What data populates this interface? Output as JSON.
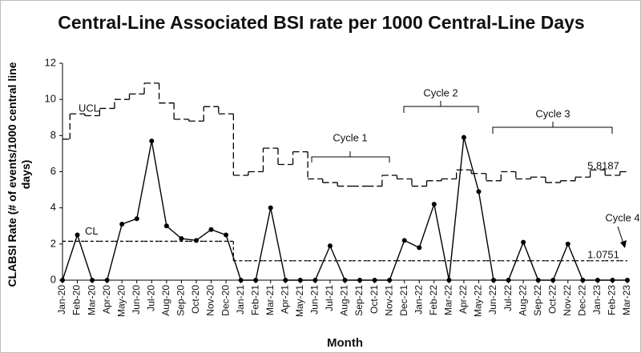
{
  "chart_data": {
    "type": "control",
    "title": "Central-Line Associated BSI rate per 1000 Central-Line Days",
    "y_label": "CLABSI Rate (# of events/1000 central line days)",
    "x_label": "Month",
    "categories": [
      "Jan-20",
      "Feb-20",
      "Mar-20",
      "Apr-20",
      "May-20",
      "Jun-20",
      "Jul-20",
      "Aug-20",
      "Sep-20",
      "Oct-20",
      "Nov-20",
      "Dec-20",
      "Jan-21",
      "Feb-21",
      "Mar-21",
      "Apr-21",
      "May-21",
      "Jun-21",
      "Jul-21",
      "Aug-21",
      "Sep-21",
      "Oct-21",
      "Nov-21",
      "Dec-21",
      "Jan-22",
      "Feb-22",
      "Mar-22",
      "Apr-22",
      "May-22",
      "Jun-22",
      "Jul-22",
      "Aug-22",
      "Sep-22",
      "Oct-22",
      "Nov-22",
      "Dec-22",
      "Jan-23",
      "Feb-23",
      "Mar-23"
    ],
    "series": [
      {
        "color": "#000000",
        "values": [
          0,
          2.5,
          0,
          0,
          3.1,
          3.4,
          7.7,
          3.0,
          2.3,
          2.2,
          2.8,
          2.5,
          0,
          0,
          4.0,
          0,
          0,
          0,
          1.9,
          0,
          0,
          0,
          0,
          2.2,
          1.8,
          4.2,
          0,
          7.9,
          4.9,
          0,
          0,
          2.1,
          0,
          0,
          2.0,
          0,
          0,
          0,
          0
        ]
      },
      {
        "name": "UCL",
        "color": "#000000",
        "values": [
          7.8,
          9.2,
          9.1,
          9.5,
          10.0,
          10.3,
          10.9,
          9.8,
          8.9,
          8.8,
          9.6,
          9.2,
          5.8,
          6.0,
          7.3,
          6.4,
          7.1,
          5.6,
          5.4,
          5.2,
          5.2,
          5.2,
          5.8,
          5.6,
          5.2,
          5.5,
          5.6,
          6.1,
          5.9,
          5.5,
          6.0,
          5.6,
          5.7,
          5.4,
          5.5,
          5.7,
          6.1,
          5.8,
          6.0
        ]
      },
      {
        "name": "CL",
        "color": "#000000",
        "values": [
          2.15,
          2.15,
          2.15,
          2.15,
          2.15,
          2.15,
          2.15,
          2.15,
          2.15,
          2.15,
          2.15,
          2.15,
          1.0751,
          1.0751,
          1.0751,
          1.0751,
          1.0751,
          1.0751,
          1.0751,
          1.0751,
          1.0751,
          1.0751,
          1.0751,
          1.0751,
          1.0751,
          1.0751,
          1.0751,
          1.0751,
          1.0751,
          1.0751,
          1.0751,
          1.0751,
          1.0751,
          1.0751,
          1.0751,
          1.0751,
          1.0751,
          1.0751,
          1.0751
        ]
      }
    ],
    "annotations": [
      "Cycle 1",
      "Cycle 2",
      "Cycle 3",
      "Cycle 4",
      "5.8187",
      "1.0751"
    ],
    "ylim": [
      0,
      12
    ],
    "yticks": [
      0,
      2,
      4,
      6,
      8,
      10,
      12
    ]
  }
}
